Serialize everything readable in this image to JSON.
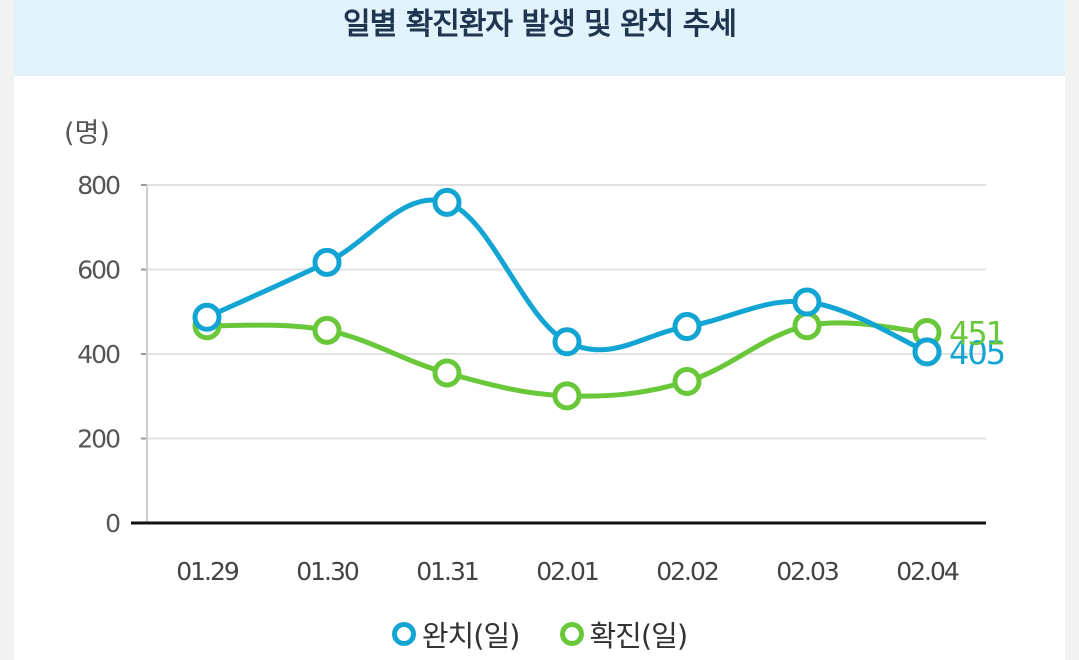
{
  "chart_data": {
    "type": "line",
    "title": "일별 확진환자 발생 및 완치 추세",
    "ylabel": "(명)",
    "xlabel": "",
    "ylim": [
      0,
      800
    ],
    "yticks": [
      0,
      200,
      400,
      600,
      800
    ],
    "categories": [
      "01.29",
      "01.30",
      "01.31",
      "02.01",
      "02.02",
      "02.03",
      "02.04"
    ],
    "grid": true,
    "legend_position": "bottom-center",
    "series": [
      {
        "name": "완치(일)",
        "color": "#12a5d4",
        "values": [
          487,
          617,
          759,
          429,
          465,
          523,
          405
        ],
        "end_label": "405"
      },
      {
        "name": "확진(일)",
        "color": "#69c83a",
        "values": [
          467,
          456,
          355,
          301,
          335,
          467,
          451
        ],
        "end_label": "451"
      }
    ]
  }
}
